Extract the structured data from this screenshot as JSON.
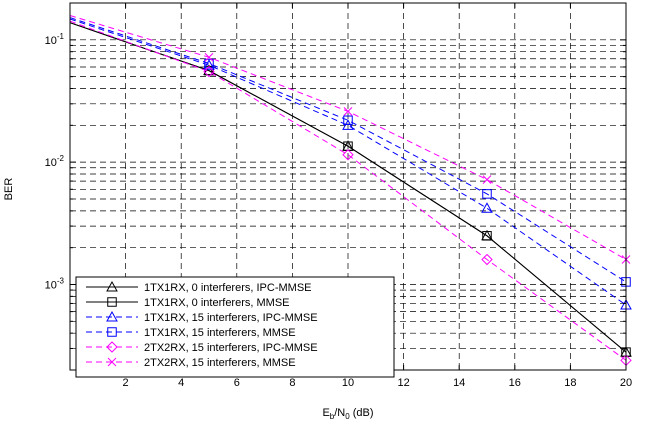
{
  "chart_data": {
    "type": "line",
    "title": "",
    "xlabel": "E_b/N_0 (dB)",
    "ylabel": "BER",
    "xlim": [
      0,
      20
    ],
    "ylim": [
      0.0002,
      0.2
    ],
    "yscale": "log",
    "grid": "dashed, major and minor",
    "legend_position": "bottom-left",
    "x_ticks": [
      "2",
      "4",
      "6",
      "8",
      "10",
      "12",
      "14",
      "16",
      "18",
      "20"
    ],
    "y_ticks": [
      {
        "base": "10",
        "exp": "-1",
        "value": 0.1
      },
      {
        "base": "10",
        "exp": "-2",
        "value": 0.01
      },
      {
        "base": "10",
        "exp": "-3",
        "value": 0.001
      }
    ],
    "series": [
      {
        "name": "1TX1RX, 0 interferers, IPC-MMSE",
        "color": "#000000",
        "marker": "triangle",
        "style": "solid",
        "x": [
          0,
          5,
          10,
          15,
          20
        ],
        "y": [
          0.138,
          0.056,
          0.0135,
          0.0025,
          0.00028
        ]
      },
      {
        "name": "1TX1RX, 0 interferers, MMSE",
        "color": "#000000",
        "marker": "square",
        "style": "solid",
        "x": [
          0,
          5,
          10,
          15,
          20
        ],
        "y": [
          0.138,
          0.056,
          0.0135,
          0.0025,
          0.00028
        ]
      },
      {
        "name": "1TX1RX, 15 interferers, IPC-MMSE",
        "color": "#0000ff",
        "marker": "triangle",
        "style": "dashed",
        "x": [
          0,
          5,
          10,
          15,
          20
        ],
        "y": [
          0.148,
          0.062,
          0.02,
          0.0042,
          0.00068
        ]
      },
      {
        "name": "1TX1RX, 15 interferers, MMSE",
        "color": "#0000ff",
        "marker": "square",
        "style": "dashed",
        "x": [
          0,
          5,
          10,
          15,
          20
        ],
        "y": [
          0.152,
          0.064,
          0.022,
          0.0055,
          0.00105
        ]
      },
      {
        "name": "2TX2RX, 15 interferers, IPC-MMSE",
        "color": "#ff00ff",
        "marker": "diamond",
        "style": "dashed",
        "x": [
          0,
          5,
          10,
          15,
          20
        ],
        "y": [
          0.142,
          0.055,
          0.0115,
          0.0016,
          0.00024
        ]
      },
      {
        "name": "2TX2RX, 15 interferers, MMSE",
        "color": "#ff00ff",
        "marker": "x",
        "style": "dashed",
        "x": [
          0,
          5,
          10,
          15,
          20
        ],
        "y": [
          0.158,
          0.072,
          0.026,
          0.0072,
          0.0016
        ]
      }
    ]
  }
}
